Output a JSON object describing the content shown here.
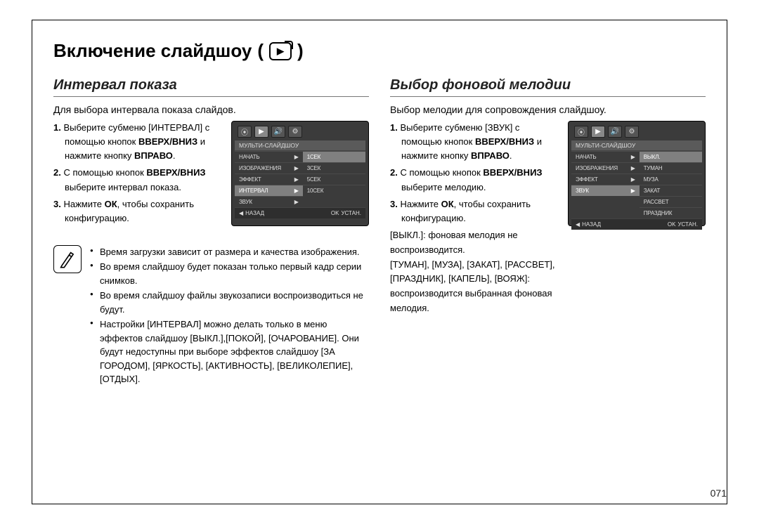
{
  "page": {
    "title": "Включение слайдшоу",
    "number": "071"
  },
  "left": {
    "heading": "Интервал показа",
    "intro": "Для выбора интервала показа слайдов.",
    "steps": [
      {
        "n": "1.",
        "html": "Выберите субменю [ИНТЕРВАЛ] с помощью кнопок <b>ВВЕРХ/ВНИЗ</b> и нажмите кнопку <b>ВПРАВО</b>."
      },
      {
        "n": "2.",
        "html": "С помощью кнопок <b>ВВЕРХ/ВНИЗ</b> выберите интервал показа."
      },
      {
        "n": "3.",
        "html": "Нажмите <b>ОК</b>, чтобы сохранить конфигурацию."
      }
    ],
    "screen": {
      "header": "МУЛЬТИ-СЛАЙДШОУ",
      "leftItems": [
        "НАЧАТЬ",
        "ИЗОБРАЖЕНИЯ",
        "ЭФФЕКТ",
        "ИНТЕРВАЛ",
        "ЗВУК"
      ],
      "selectedLeft": "ИНТЕРВАЛ",
      "rightItems": [
        "1СЕК",
        "3СЕК",
        "5СЕК",
        "10СЕК"
      ],
      "selectedRight": "1СЕК",
      "footer": {
        "back": "НАЗАД",
        "ok": "OK",
        "set": "УСТАН."
      }
    },
    "notes": [
      "Время загрузки зависит от размера и качества изображения.",
      "Во время слайдшоу будет показан только первый кадр серии снимков.",
      "Во время слайдшоу файлы звукозаписи воспроизводиться не будут.",
      "Настройки [ИНТЕРВАЛ] можно делать только в меню эффектов слайдшоу [ВЫКЛ.],[ПОКОЙ], [ОЧАРОВАНИЕ]. Они будут недоступны при выборе эффектов слайдшоу [ЗА ГОРОДОМ], [ЯРКОСТЬ], [АКТИВНОСТЬ], [ВЕЛИКОЛЕПИЕ], [ОТДЫХ]."
    ]
  },
  "right": {
    "heading": "Выбор фоновой мелодии",
    "intro": "Выбор мелодии для сопровождения слайдшоу.",
    "steps": [
      {
        "n": "1.",
        "html": "Выберите субменю [ЗВУК] с помощью кнопок <b>ВВЕРХ/ВНИЗ</b> и нажмите кнопку <b>ВПРАВО</b>."
      },
      {
        "n": "2.",
        "html": "С помощью кнопок <b>ВВЕРХ/ВНИЗ</b> выберите мелодию."
      },
      {
        "n": "3.",
        "html": "Нажмите <b>ОК</b>, чтобы сохранить конфигурацию."
      }
    ],
    "afterSteps": [
      "[ВЫКЛ.]: фоновая мелодия не воспроизводится.",
      "[ТУМАН], [МУЗА], [ЗАКАТ], [РАССВЕТ], [ПРАЗДНИК], [КАПЕЛЬ], [ВОЯЖ]: воспроизводится выбранная фоновая мелодия."
    ],
    "screen": {
      "header": "МУЛЬТИ-СЛАЙДШОУ",
      "leftItems": [
        "НАЧАТЬ",
        "ИЗОБРАЖЕНИЯ",
        "ЭФФЕКТ",
        "ЗВУК"
      ],
      "selectedLeft": "ЗВУК",
      "rightItems": [
        "ВЫКЛ.",
        "ТУМАН",
        "МУЗА",
        "ЗАКАТ",
        "РАССВЕТ",
        "ПРАЗДНИК"
      ],
      "selectedRight": "ВЫКЛ.",
      "footer": {
        "back": "НАЗАД",
        "ok": "OK",
        "set": "УСТАН."
      }
    }
  }
}
